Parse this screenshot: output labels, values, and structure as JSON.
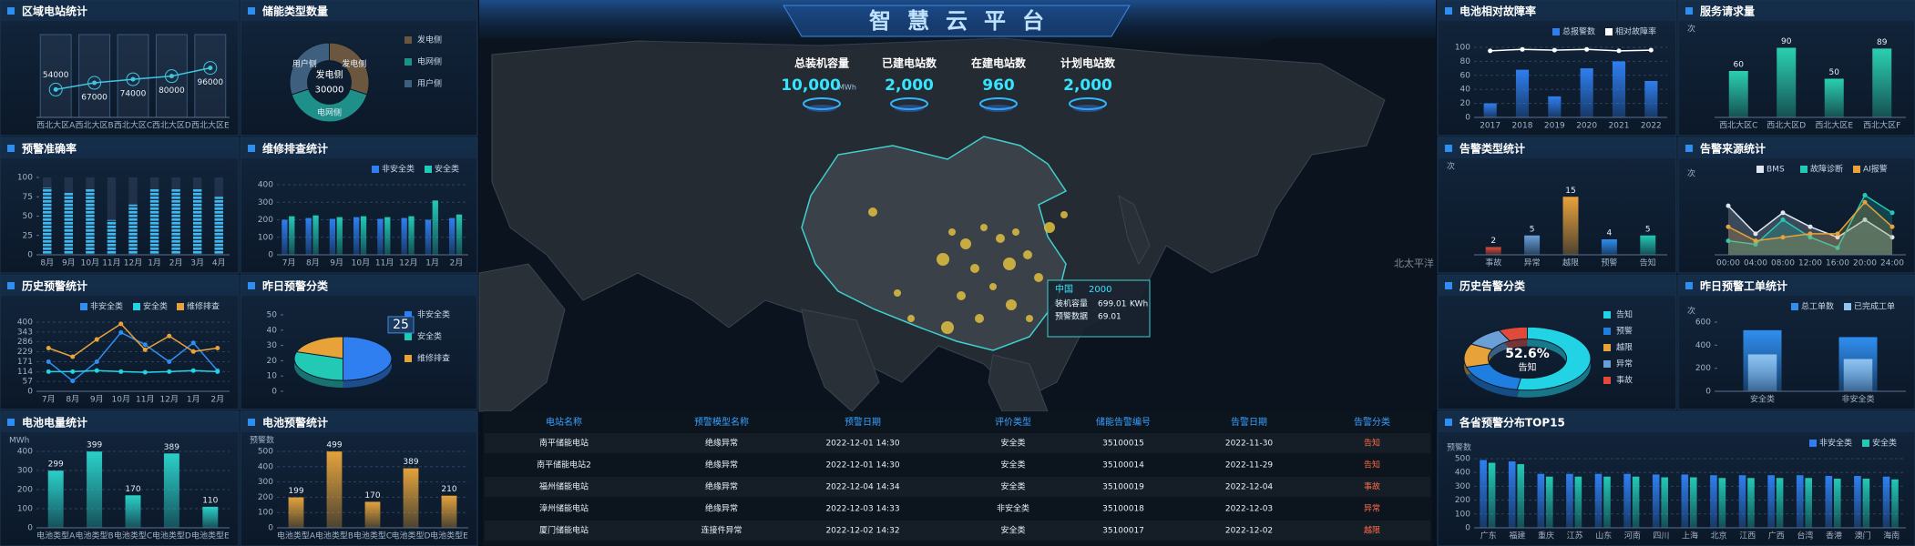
{
  "header": {
    "title": "智慧云平台"
  },
  "stats": [
    {
      "label": "总装机容量",
      "value": "10,000",
      "unit": "MWh"
    },
    {
      "label": "已建电站数",
      "value": "2,000"
    },
    {
      "label": "在建电站数",
      "value": "960"
    },
    {
      "label": "计划电站数",
      "value": "2,000"
    }
  ],
  "map": {
    "label": "北太平洋",
    "tooltip": {
      "name": "中国",
      "value": 2000,
      "capacity_label": "装机容量",
      "capacity": 699.01,
      "capacity_unit": "KWh",
      "warning_label": "预警数据",
      "warning": 69.01
    }
  },
  "table": {
    "columns": [
      "电站名称",
      "预警模型名称",
      "预警日期",
      "评价类型",
      "储能告警编号",
      "告警日期",
      "告警分类"
    ],
    "rows": [
      [
        "南平储能电站",
        "绝缘异常",
        "2022-12-01 14:30",
        "安全类",
        "35100015",
        "2022-11-30",
        "告知"
      ],
      [
        "南平储能电站2",
        "绝缘异常",
        "2022-12-01 14:30",
        "安全类",
        "35100014",
        "2022-11-29",
        "告知"
      ],
      [
        "福州储能电站",
        "绝缘异常",
        "2022-12-04 14:34",
        "安全类",
        "35100019",
        "2022-12-04",
        "事故"
      ],
      [
        "漳州储能电站",
        "绝缘异常",
        "2022-12-03 14:33",
        "非安全类",
        "35100018",
        "2022-12-03",
        "异常"
      ],
      [
        "厦门储能电站",
        "连接件异常",
        "2022-12-02 14:32",
        "安全类",
        "35100017",
        "2022-12-02",
        "越限"
      ]
    ]
  },
  "chart_data": [
    {
      "type": "line",
      "title": "区域电站统计",
      "categories": [
        "西北大区A",
        "西北大区B",
        "西北大区C",
        "西北大区D",
        "西北大区E"
      ],
      "values": [
        54000,
        67000,
        74000,
        80000,
        96000
      ],
      "color": "#3fc6e0",
      "ylim": [
        0,
        150000
      ],
      "show_values": true,
      "background": true
    },
    {
      "type": "pie",
      "title": "储能类型数量",
      "categories": [
        "发电侧",
        "电网侧",
        "用户侧"
      ],
      "values": [
        30000,
        40000,
        30000
      ],
      "colors": [
        "#6b5640",
        "#1f8f8a",
        "#3f5f7f"
      ],
      "donut": 0.55,
      "slice_labels": true,
      "legend": "right"
    },
    {
      "type": "bar",
      "title": "预警准确率",
      "categories": [
        "8月",
        "9月",
        "10月",
        "11月",
        "12月",
        "1月",
        "2月",
        "3月",
        "4月"
      ],
      "values": [
        87,
        80,
        85,
        45,
        65,
        85,
        85,
        85,
        75
      ],
      "color": "#3fb8ef",
      "ylim": [
        0,
        100
      ],
      "yticks": [
        0,
        25,
        50,
        75,
        100
      ],
      "background": true,
      "bar_style": "segmented"
    },
    {
      "type": "bar",
      "title": "维修排查统计",
      "categories": [
        "7月",
        "8月",
        "9月",
        "10月",
        "11月",
        "12月",
        "1月",
        "2月"
      ],
      "series": [
        {
          "name": "非安全类",
          "color": "#2f7ff0",
          "values": [
            200,
            210,
            205,
            215,
            205,
            210,
            200,
            210
          ]
        },
        {
          "name": "安全类",
          "color": "#22c9b5",
          "values": [
            220,
            225,
            215,
            220,
            215,
            220,
            310,
            230
          ]
        }
      ],
      "ylim": [
        0,
        400
      ],
      "yticks": [
        0,
        100,
        200,
        300,
        400
      ],
      "grid": true,
      "legend": "top"
    },
    {
      "type": "line",
      "title": "历史预警统计",
      "categories": [
        "7月",
        "8月",
        "9月",
        "10月",
        "11月",
        "12月",
        "1月",
        "2月"
      ],
      "series": [
        {
          "name": "非安全类",
          "color": "#2f8ef0",
          "values": [
            171,
            60,
            171,
            340,
            270,
            171,
            280,
            120
          ]
        },
        {
          "name": "安全类",
          "color": "#22d3e6",
          "values": [
            114,
            114,
            120,
            114,
            110,
            114,
            120,
            114
          ]
        },
        {
          "name": "维修排查",
          "color": "#e8a23a",
          "values": [
            250,
            200,
            300,
            390,
            240,
            320,
            230,
            250
          ]
        }
      ],
      "ylim": [
        0,
        400
      ],
      "yticks": [
        0,
        57,
        114,
        171,
        229,
        286,
        343,
        400
      ],
      "grid": true,
      "legend": "top"
    },
    {
      "type": "pie",
      "title": "昨日预警分类",
      "categories": [
        "非安全类",
        "安全类",
        "维修排查"
      ],
      "values": [
        25,
        15,
        10
      ],
      "colors": [
        "#2f7ff0",
        "#22c9b5",
        "#e8a23a"
      ],
      "tilt": 0.45,
      "legend": "right",
      "ylim": [
        0,
        50
      ],
      "yticks": [
        0,
        10,
        20,
        30,
        40,
        50
      ]
    },
    {
      "type": "bar",
      "title": "电池电量统计",
      "ylabel": "MWh",
      "categories": [
        "电池类型A",
        "电池类型B",
        "电池类型C",
        "电池类型D",
        "电池类型E"
      ],
      "values": [
        299,
        399,
        170,
        389,
        110
      ],
      "color": "#2ad0c8",
      "ylim": [
        0,
        400
      ],
      "yticks": [
        0,
        100,
        200,
        300,
        400
      ],
      "grid": true,
      "show_values": true
    },
    {
      "type": "bar",
      "title": "电池预警统计",
      "ylabel": "预警数",
      "categories": [
        "电池类型A",
        "电池类型B",
        "电池类型C",
        "电池类型D",
        "电池类型E"
      ],
      "values": [
        199,
        499,
        170,
        389,
        210
      ],
      "color": "#e3a23b",
      "ylim": [
        0,
        500
      ],
      "yticks": [
        0,
        100,
        200,
        300,
        400,
        500
      ],
      "grid": true,
      "show_values": true
    },
    {
      "type": "bar",
      "title": "电池相对故障率",
      "categories": [
        "2017",
        "2018",
        "2019",
        "2020",
        "2021",
        "2022"
      ],
      "series": [
        {
          "name": "总报警数",
          "color": "#2f7ff0",
          "values": [
            20,
            68,
            30,
            70,
            80,
            52
          ]
        },
        {
          "name": "相对故障率",
          "type": "line",
          "color": "#ffffff",
          "values": [
            95,
            97,
            96,
            97,
            95,
            96
          ]
        }
      ],
      "ylim": [
        0,
        100
      ],
      "yticks": [
        0,
        20,
        40,
        60,
        80,
        100
      ],
      "grid": true,
      "legend": "top"
    },
    {
      "type": "bar",
      "title": "服务请求量",
      "ylabel": "次",
      "categories": [
        "西北大区C",
        "西北大区D",
        "西北大区E",
        "西北大区F"
      ],
      "values": [
        60,
        90,
        50,
        89
      ],
      "color": "#2ad0b0",
      "ylim": [
        0,
        100
      ],
      "show_values": true
    },
    {
      "type": "bar",
      "title": "告警类型统计",
      "ylabel": "次",
      "categories": [
        "事故",
        "异常",
        "越限",
        "预警",
        "告知"
      ],
      "values": [
        2,
        5,
        15,
        4,
        5
      ],
      "colors": [
        "#e04a3a",
        "#6a9fd8",
        "#e8a23a",
        "#2f8ef0",
        "#22c9b5"
      ],
      "ylim": [
        0,
        20
      ],
      "show_values": true
    },
    {
      "type": "line",
      "title": "告警来源统计",
      "ylabel": "次",
      "categories": [
        "00:00",
        "04:00",
        "08:00",
        "12:00",
        "16:00",
        "20:00",
        "24:00"
      ],
      "series": [
        {
          "name": "BMS",
          "color": "#dfe8f2",
          "values": [
            70,
            30,
            60,
            40,
            25,
            50,
            25
          ]
        },
        {
          "name": "故障诊断",
          "color": "#22c9b5",
          "values": [
            20,
            15,
            50,
            25,
            10,
            85,
            60
          ]
        },
        {
          "name": "AI报警",
          "color": "#e8a23a",
          "values": [
            40,
            20,
            25,
            30,
            30,
            75,
            40
          ]
        }
      ],
      "ylim": [
        0,
        100
      ],
      "area": true,
      "legend": "top"
    },
    {
      "type": "pie",
      "title": "历史告警分类",
      "categories": [
        "告知",
        "预警",
        "越限",
        "异常",
        "事故"
      ],
      "values": [
        52.6,
        18,
        12,
        10,
        7.4
      ],
      "colors": [
        "#22d3e6",
        "#1f7fe0",
        "#e8a23a",
        "#6a9fd8",
        "#e04a3a"
      ],
      "donut": 0.62,
      "tilt": 0.5,
      "center_label": "52.6%",
      "legend": "right"
    },
    {
      "type": "bar",
      "title": "昨日预警工单统计",
      "ylabel": "次",
      "categories": [
        "安全类",
        "非安全类"
      ],
      "series": [
        {
          "name": "总工单数",
          "color": "#2f8ef0",
          "values": [
            530,
            470
          ]
        },
        {
          "name": "已完成工单",
          "color": "#8fc3f0",
          "values": [
            320,
            280
          ]
        }
      ],
      "bar_mode": "overlap",
      "ylim": [
        0,
        600
      ],
      "yticks": [
        0,
        200,
        400,
        600
      ],
      "legend": "top"
    },
    {
      "type": "bar",
      "title": "各省预警分布TOP15",
      "ylabel": "预警数",
      "categories": [
        "广东",
        "福建",
        "重庆",
        "江苏",
        "山东",
        "河南",
        "四川",
        "上海",
        "北京",
        "江西",
        "广西",
        "台湾",
        "香港",
        "澳门",
        "海南"
      ],
      "series": [
        {
          "name": "非安全类",
          "color": "#2f7ff0",
          "values": [
            490,
            480,
            390,
            390,
            390,
            390,
            385,
            385,
            380,
            380,
            380,
            380,
            375,
            375,
            370
          ]
        },
        {
          "name": "安全类",
          "color": "#22c9b5",
          "values": [
            470,
            460,
            370,
            370,
            370,
            370,
            365,
            365,
            360,
            360,
            360,
            360,
            355,
            355,
            350
          ]
        }
      ],
      "ylim": [
        0,
        500
      ],
      "yticks": [
        0,
        100,
        200,
        300,
        400,
        500
      ],
      "grid": true,
      "legend": "top"
    }
  ]
}
